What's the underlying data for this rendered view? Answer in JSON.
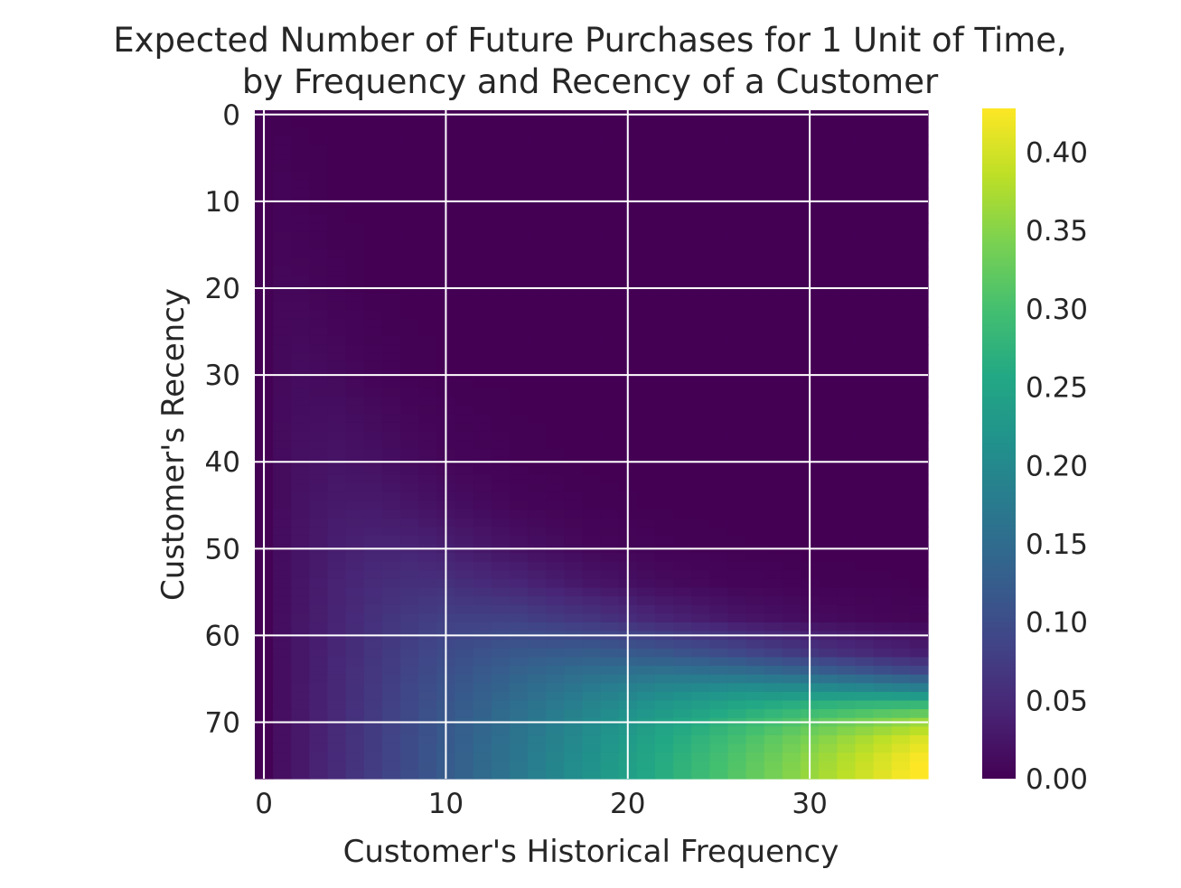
{
  "chart_data": {
    "type": "heatmap",
    "title": [
      "Expected Number of Future Purchases for 1 Unit of Time,",
      "by Frequency and Recency of a Customer"
    ],
    "xlabel": "Customer's Historical Frequency",
    "ylabel": "Customer's Recency",
    "xlim": [
      -0.5,
      36.5
    ],
    "ylim": [
      76.5,
      -0.5
    ],
    "x_ticks": [
      "0",
      "10",
      "20",
      "30"
    ],
    "y_ticks": [
      "0",
      "10",
      "20",
      "30",
      "40",
      "50",
      "60",
      "70"
    ],
    "grid": true,
    "colormap": "viridis",
    "color_range": [
      0.0,
      0.428
    ],
    "colorbar_ticks": [
      "0.00",
      "0.05",
      "0.10",
      "0.15",
      "0.20",
      "0.25",
      "0.30",
      "0.35",
      "0.40"
    ],
    "frequency": [
      0,
      1,
      2,
      4,
      6,
      8,
      10,
      14,
      18,
      22,
      26,
      30,
      33,
      36
    ],
    "recency": [
      0,
      10,
      20,
      30,
      40,
      45,
      50,
      54,
      58,
      62,
      64,
      66,
      68,
      70,
      72,
      74,
      76
    ],
    "values": [
      [
        0.001,
        0.0012,
        0.0003,
        0,
        0,
        0,
        0,
        0,
        0,
        0,
        0,
        0,
        0,
        0
      ],
      [
        0.001,
        0.0043,
        0.0025,
        0.0004,
        0,
        0,
        0,
        0,
        0,
        0,
        0,
        0,
        0,
        0
      ],
      [
        0.001,
        0.0076,
        0.0072,
        0.0028,
        0.0006,
        0.0001,
        0,
        0,
        0,
        0,
        0,
        0,
        0,
        0
      ],
      [
        0.001,
        0.0105,
        0.0131,
        0.0104,
        0.0049,
        0.0017,
        0.0005,
        0,
        0,
        0,
        0,
        0,
        0,
        0
      ],
      [
        0.001,
        0.0127,
        0.0185,
        0.0231,
        0.0193,
        0.0121,
        0.0064,
        0.0013,
        0.0002,
        0,
        0,
        0,
        0,
        0
      ],
      [
        0.001,
        0.0136,
        0.0208,
        0.0299,
        0.0307,
        0.0249,
        0.017,
        0.0056,
        0.0015,
        0.0002,
        0,
        0,
        0,
        0
      ],
      [
        0.001,
        0.0144,
        0.0227,
        0.0359,
        0.043,
        0.0428,
        0.037,
        0.0196,
        0.0078,
        0.0027,
        0.0008,
        0.0001,
        0,
        0
      ],
      [
        0.001,
        0.0149,
        0.024,
        0.0399,
        0.0518,
        0.0581,
        0.0582,
        0.0442,
        0.025,
        0.0118,
        0.005,
        0.002,
        0.001,
        0.0005
      ],
      [
        0.001,
        0.0154,
        0.0251,
        0.0433,
        0.0592,
        0.0716,
        0.0796,
        0.0807,
        0.0649,
        0.0429,
        0.0248,
        0.0131,
        0.0077,
        0.0045
      ],
      [
        0.001,
        0.0159,
        0.0261,
        0.046,
        0.065,
        0.0821,
        0.097,
        0.1179,
        0.1236,
        0.1138,
        0.0925,
        0.0677,
        0.0505,
        0.0363
      ],
      [
        0.001,
        0.0161,
        0.0265,
        0.0472,
        0.0673,
        0.0862,
        0.1037,
        0.1328,
        0.1514,
        0.1569,
        0.1481,
        0.1282,
        0.1087,
        0.0889
      ],
      [
        0.001,
        0.0163,
        0.0269,
        0.0482,
        0.0693,
        0.0896,
        0.1091,
        0.1447,
        0.1741,
        0.1951,
        0.2054,
        0.2037,
        0.1945,
        0.1799
      ],
      [
        0.001,
        0.0165,
        0.0273,
        0.0492,
        0.071,
        0.0924,
        0.1134,
        0.1537,
        0.1909,
        0.2237,
        0.251,
        0.2714,
        0.2809,
        0.2851
      ],
      [
        0.001,
        0.0166,
        0.0277,
        0.05,
        0.0725,
        0.0947,
        0.1168,
        0.1602,
        0.2023,
        0.2429,
        0.2811,
        0.3168,
        0.341,
        0.3632
      ],
      [
        0.001,
        0.0168,
        0.028,
        0.0507,
        0.0737,
        0.0966,
        0.1194,
        0.1649,
        0.21,
        0.2546,
        0.2986,
        0.342,
        0.3738,
        0.4052
      ],
      [
        0.001,
        0.017,
        0.0283,
        0.0514,
        0.0747,
        0.0981,
        0.1214,
        0.1682,
        0.2149,
        0.2616,
        0.3081,
        0.3547,
        0.3895,
        0.4242
      ],
      [
        0.001,
        0.0171,
        0.0286,
        0.0519,
        0.0756,
        0.0993,
        0.123,
        0.1705,
        0.2181,
        0.2656,
        0.3132,
        0.3609,
        0.3966,
        0.4322
      ]
    ]
  }
}
